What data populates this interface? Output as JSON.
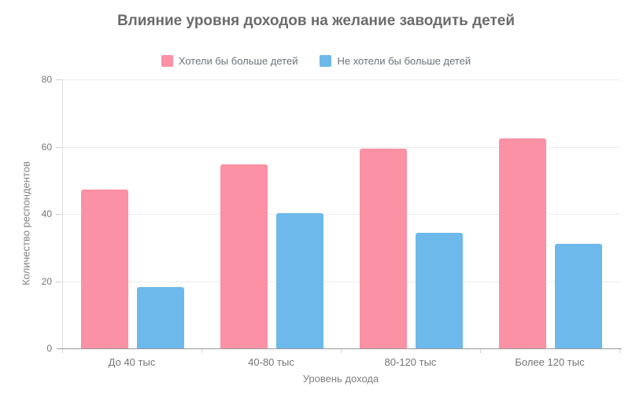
{
  "chart_data": {
    "type": "bar",
    "title": "Влияние уровня доходов на желание заводить детей",
    "categories": [
      "До 40 тыс",
      "40-80 тыс",
      "80-120 тыс",
      "Более 120 тыс"
    ],
    "series": [
      {
        "name": "Хотели бы больше детей",
        "color": "#FA91A4",
        "values": [
          47.2,
          54.7,
          59.4,
          62.4
        ]
      },
      {
        "name": "Не хотели бы больше детей",
        "color": "#6EB9EB",
        "values": [
          18.3,
          40.3,
          34.4,
          31.2
        ]
      }
    ],
    "xlabel": "Уровень дохода",
    "ylabel": "Количество респондентов",
    "ylim": [
      0,
      80
    ],
    "yticks": [
      0,
      20,
      40,
      60,
      80
    ],
    "grid": true,
    "legend_position": "top-center"
  },
  "style_colors": {
    "background": "#FFFFFF",
    "title_text": "#6B6B6B",
    "legend_text": "#6A737B",
    "tick_label": "#757575",
    "axis_title": "#808080",
    "gridline": "#ECECEC",
    "axis_line": "#999999",
    "tick_mark": "#D0D0D0",
    "y_axis_line": "#E0E0E0"
  }
}
